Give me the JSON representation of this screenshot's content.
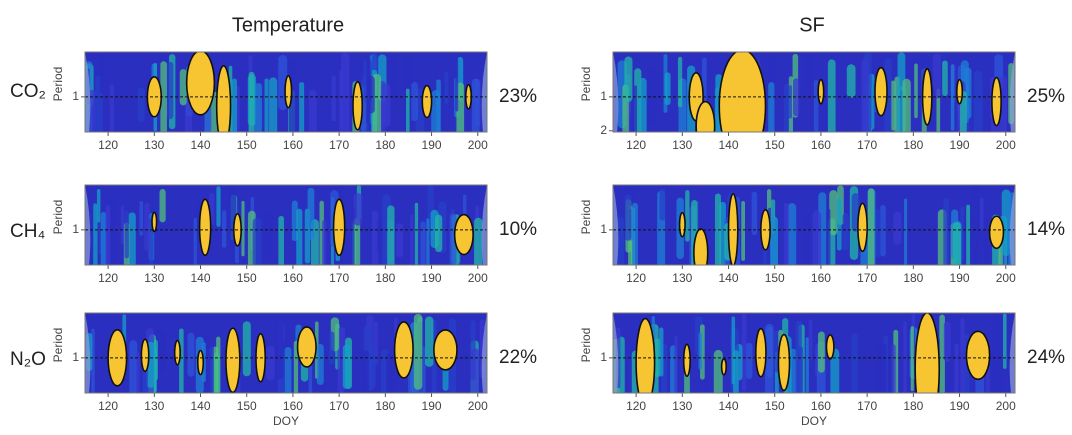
{
  "column_titles": [
    "Temperature",
    "SF"
  ],
  "row_labels": [
    "CO₂",
    "CH₄",
    "N₂O"
  ],
  "chart_data": [
    {
      "type": "wavelet",
      "ylabel": "Period",
      "annotation": "23%",
      "xlim": [
        115,
        202
      ],
      "xticks": [
        120,
        130,
        140,
        150,
        160,
        170,
        180,
        190,
        200
      ],
      "ylim": [
        0.4,
        2.05
      ],
      "yticks": [
        1
      ],
      "ylog": true,
      "y_reversed": true
    },
    {
      "type": "wavelet",
      "ylabel": "Period",
      "annotation": "25%",
      "xlim": [
        115,
        202
      ],
      "xticks": [
        120,
        130,
        140,
        150,
        160,
        170,
        180,
        190,
        200
      ],
      "ylim": [
        0.4,
        2.05
      ],
      "yticks": [
        1,
        2
      ],
      "ylog": true,
      "y_reversed": true
    },
    {
      "type": "wavelet",
      "ylabel": "Period",
      "annotation": "10%",
      "xlim": [
        115,
        202
      ],
      "xticks": [
        120,
        130,
        140,
        150,
        160,
        170,
        180,
        190,
        200
      ],
      "ylim": [
        0.4,
        2.05
      ],
      "yticks": [
        1
      ],
      "ylog": true,
      "y_reversed": true
    },
    {
      "type": "wavelet",
      "ylabel": "Period",
      "annotation": "14%",
      "xlim": [
        115,
        202
      ],
      "xticks": [
        120,
        130,
        140,
        150,
        160,
        170,
        180,
        190,
        200
      ],
      "ylim": [
        0.4,
        2.05
      ],
      "yticks": [
        1
      ],
      "ylog": true,
      "y_reversed": true
    },
    {
      "type": "wavelet",
      "ylabel": "Period",
      "xlabel": "DOY",
      "annotation": "22%",
      "xlim": [
        115,
        202
      ],
      "xticks": [
        120,
        130,
        140,
        150,
        160,
        170,
        180,
        190,
        200
      ],
      "ylim": [
        0.4,
        2.05
      ],
      "yticks": [
        1
      ],
      "ylog": true,
      "y_reversed": true
    },
    {
      "type": "wavelet",
      "ylabel": "Period",
      "xlabel": "DOY",
      "annotation": "24%",
      "xlim": [
        115,
        202
      ],
      "xticks": [
        120,
        130,
        140,
        150,
        160,
        170,
        180,
        190,
        200
      ],
      "ylim": [
        0.4,
        2.05
      ],
      "yticks": [
        1
      ],
      "ylog": true,
      "y_reversed": true
    }
  ]
}
